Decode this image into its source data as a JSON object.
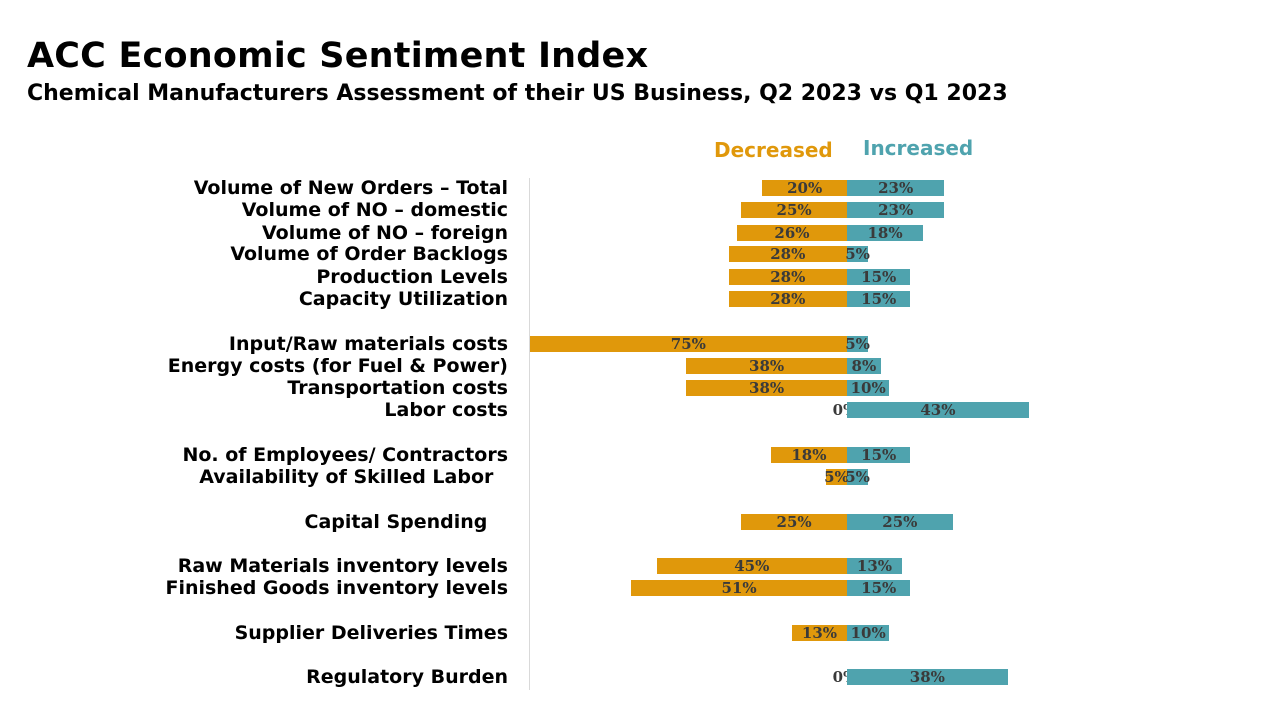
{
  "header": {
    "title": "ACC Economic Sentiment Index",
    "subtitle": "Chemical Manufacturers Assessment of their US Business, Q2 2023 vs Q1 2023"
  },
  "legend": {
    "decreased_label": "Decreased",
    "increased_label": "Increased",
    "decreased_color": "#E0980B",
    "increased_color": "#4FA3AE"
  },
  "chart_data": {
    "type": "bar",
    "orientation": "horizontal-diverging",
    "unit": "%",
    "categories": [
      "Volume of New Orders – Total",
      "Volume of NO – domestic",
      "Volume of NO – foreign",
      "Volume of Order Backlogs",
      "Production Levels",
      "Capacity Utilization",
      "Input/Raw materials costs",
      "Energy costs (for Fuel & Power)",
      "Transportation costs",
      "Labor costs",
      "No. of Employees/ Contractors",
      "Availability of Skilled Labor ",
      "Capital Spending ",
      "Raw Materials inventory levels",
      "Finished Goods inventory levels",
      "Supplier Deliveries Times",
      "Regulatory Burden"
    ],
    "series": [
      {
        "name": "Decreased",
        "values": [
          20,
          25,
          26,
          28,
          28,
          28,
          75,
          38,
          38,
          0,
          18,
          5,
          25,
          45,
          51,
          13,
          0
        ],
        "labels": [
          "20%",
          "25%",
          "26%",
          "28%",
          "28%",
          "28%",
          "75%",
          "38%",
          "38%",
          "0%",
          "18%",
          "5%",
          "25%",
          "45%",
          "51%",
          "13%",
          "0%"
        ]
      },
      {
        "name": "Increased",
        "values": [
          23,
          23,
          18,
          5,
          15,
          15,
          5,
          8,
          10,
          43,
          15,
          5,
          25,
          13,
          15,
          10,
          38
        ],
        "labels": [
          "23%",
          "23%",
          "18%",
          "5%",
          "15%",
          "15%",
          "5%",
          "8%",
          "10%",
          "43%",
          "15%",
          "5%",
          "25%",
          "13%",
          "15%",
          "10%",
          "38%"
        ]
      }
    ],
    "groups": [
      [
        0,
        1,
        2,
        3,
        4,
        5
      ],
      [
        6,
        7,
        8,
        9
      ],
      [
        10,
        11
      ],
      [
        12
      ],
      [
        13,
        14
      ],
      [
        15
      ],
      [
        16
      ]
    ],
    "legend_position": "top",
    "grid": false
  }
}
